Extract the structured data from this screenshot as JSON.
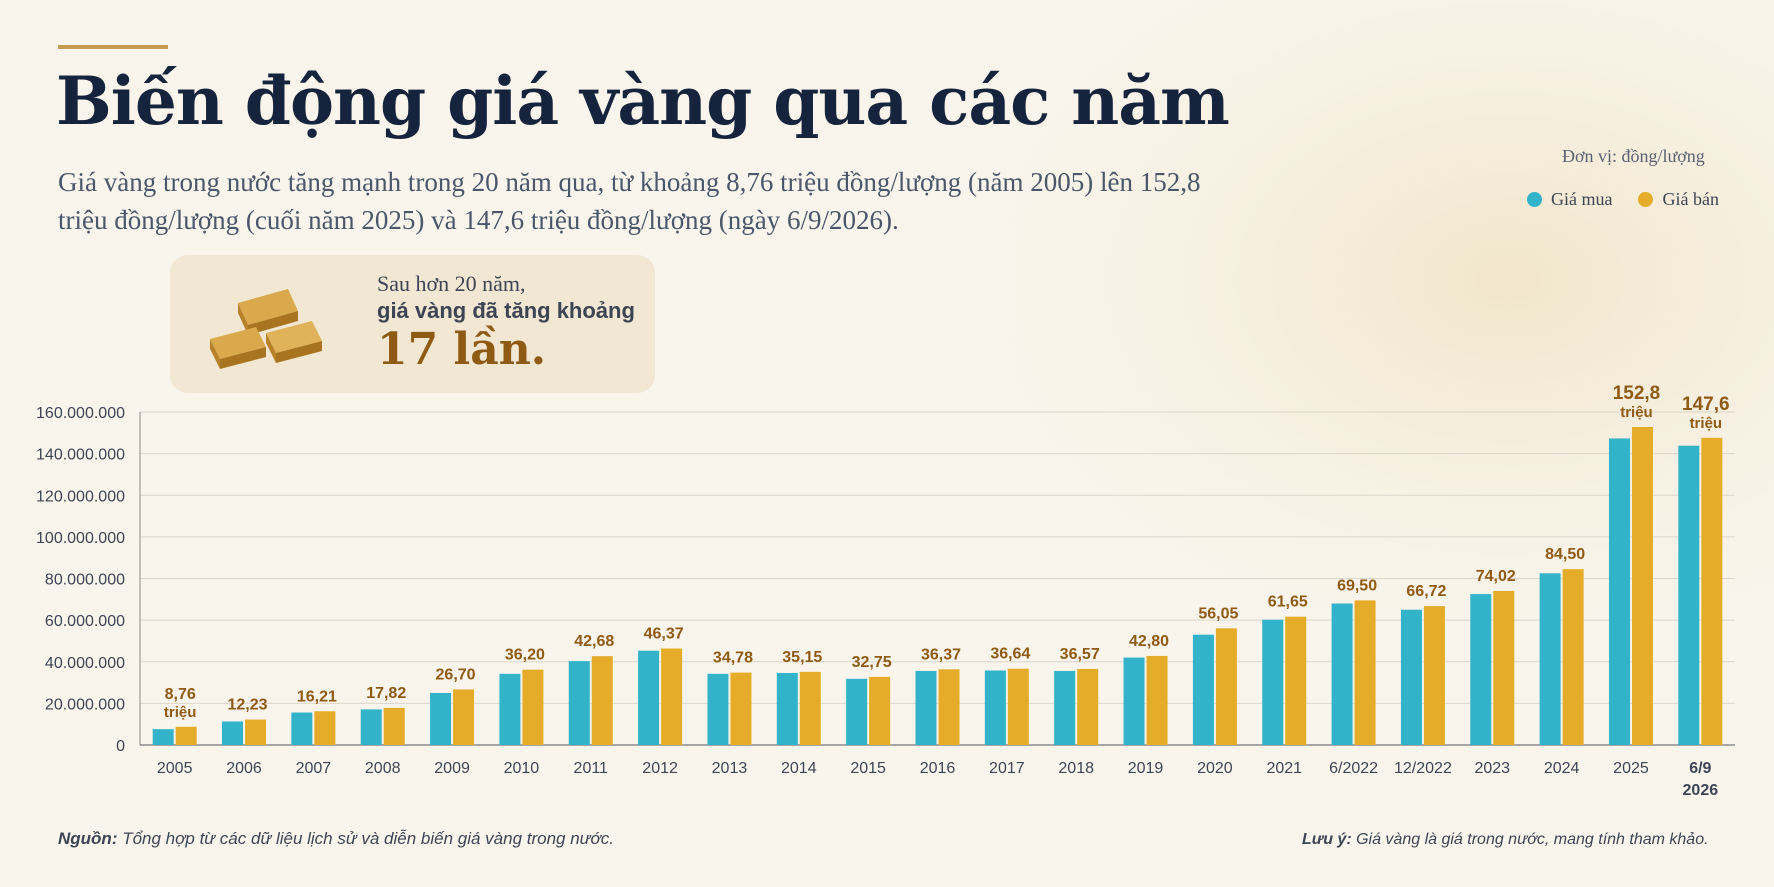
{
  "header": {
    "title": "Biến động giá vàng qua các năm",
    "subtitle": "Giá vàng trong nước tăng mạnh trong 20 năm qua, từ khoảng 8,76 triệu đồng/lượng (năm 2005) lên 152,8 triệu đồng/lượng (cuối năm 2025) và 147,6 triệu đồng/lượng (ngày 6/9/2026)."
  },
  "unit_label": "Đơn vị: đồng/lượng",
  "legend": {
    "buy_label": "Giá mua",
    "sell_label": "Giá bán",
    "buy_color": "#33b3c9",
    "sell_color": "#e5ac29"
  },
  "callout": {
    "line1": "Sau hơn 20 năm,",
    "line2": "giá vàng đã tăng khoảng",
    "line3": "17 lần.",
    "icon": "gold-bars-icon"
  },
  "chart_data": {
    "type": "bar",
    "ylim": [
      0,
      160000000
    ],
    "y_ticks": [
      "0",
      "20.000.000",
      "40.000.000",
      "60.000.000",
      "80.000.000",
      "100.000.000",
      "120.000.000",
      "140.000.000",
      "160.000.000"
    ],
    "categories": [
      "2005",
      "2006",
      "2007",
      "2008",
      "2009",
      "2010",
      "2011",
      "2012",
      "2013",
      "2014",
      "2015",
      "2016",
      "2017",
      "2018",
      "2019",
      "2020",
      "2021",
      "6/2022",
      "12/2022",
      "2023",
      "2024",
      "2025",
      "6/9 2026"
    ],
    "series": [
      {
        "name": "Giá mua",
        "values": [
          7600000,
          11300000,
          15600000,
          17100000,
          25000000,
          34200000,
          40300000,
          45300000,
          34200000,
          34600000,
          31800000,
          35600000,
          35800000,
          35600000,
          42000000,
          53000000,
          60200000,
          68000000,
          65000000,
          72500000,
          82500000,
          147300000,
          143800000
        ]
      },
      {
        "name": "Giá bán",
        "values": [
          8760000,
          12230000,
          16210000,
          17820000,
          26700000,
          36200000,
          42680000,
          46370000,
          34780000,
          35150000,
          32750000,
          36370000,
          36640000,
          36570000,
          42800000,
          56050000,
          61650000,
          69500000,
          66720000,
          74020000,
          84500000,
          152800000,
          147600000
        ]
      }
    ],
    "data_labels": [
      [
        "8,76",
        "triệu"
      ],
      [
        "12,23"
      ],
      [
        "16,21"
      ],
      [
        "17,82"
      ],
      [
        "26,70"
      ],
      [
        "36,20"
      ],
      [
        "42,68"
      ],
      [
        "46,37"
      ],
      [
        "34,78"
      ],
      [
        "35,15"
      ],
      [
        "32,75"
      ],
      [
        "36,37"
      ],
      [
        "36,64"
      ],
      [
        "36,57"
      ],
      [
        "42,80"
      ],
      [
        "56,05"
      ],
      [
        "61,65"
      ],
      [
        "69,50"
      ],
      [
        "66,72"
      ],
      [
        "74,02"
      ],
      [
        "84,50"
      ],
      [
        "152,8",
        "triệu"
      ],
      [
        "147,6",
        "triệu"
      ]
    ],
    "grid": true
  },
  "footer": {
    "source_label": "Nguồn:",
    "source_text": " Tổng hợp từ các dữ liệu lịch sử và diễn biến giá vàng trong nước.",
    "note_label": "Lưu ý:",
    "note_text": " Giá vàng là giá trong nước, mang tính tham khảo."
  }
}
